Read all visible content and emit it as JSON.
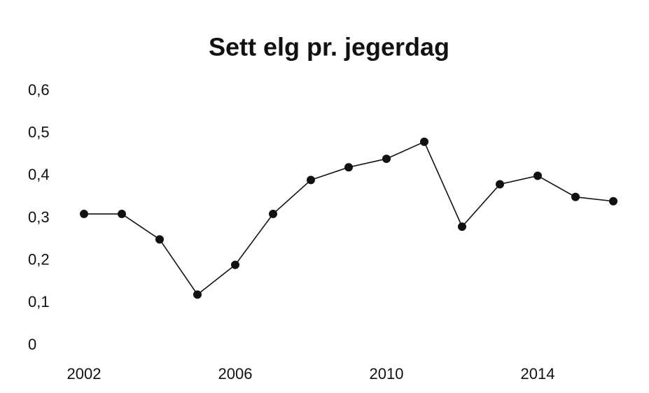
{
  "chart_data": {
    "type": "line",
    "title": "Sett elg pr. jegerdag",
    "x": [
      2002,
      2003,
      2004,
      2005,
      2006,
      2007,
      2008,
      2009,
      2010,
      2011,
      2012,
      2013,
      2014,
      2015,
      2016
    ],
    "values": [
      0.31,
      0.31,
      0.25,
      0.12,
      0.19,
      0.31,
      0.39,
      0.42,
      0.44,
      0.48,
      0.28,
      0.38,
      0.4,
      0.35,
      0.34
    ],
    "color": "#111111",
    "xlim": [
      2002,
      2016
    ],
    "xticks": [
      2002,
      2006,
      2010,
      2014
    ],
    "ylim": [
      0,
      0.6
    ],
    "yticks": [
      0,
      {
        "value": 0.1,
        "label": "0,1"
      },
      {
        "value": 0.2,
        "label": "0,2"
      },
      {
        "value": 0.3,
        "label": "0,3"
      },
      {
        "value": 0.4,
        "label": "0,4"
      },
      {
        "value": 0.5,
        "label": "0,5"
      },
      {
        "value": 0.6,
        "label": "0,6"
      }
    ],
    "grid": false
  }
}
